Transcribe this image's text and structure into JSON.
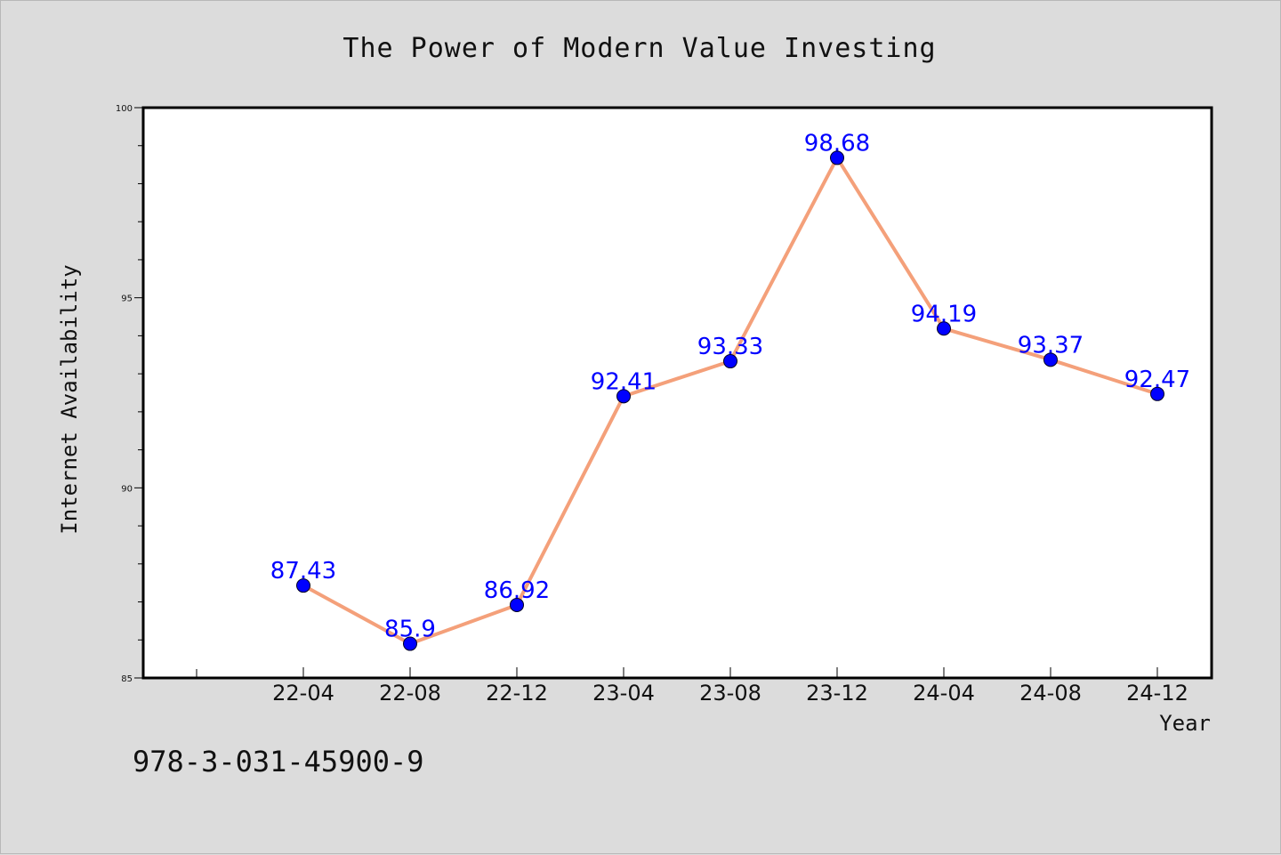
{
  "chart_data": {
    "type": "line",
    "title": "The Power of Modern Value Investing",
    "xlabel": "Year",
    "ylabel": "Internet Availability",
    "categories": [
      "22-04",
      "22-08",
      "22-12",
      "23-04",
      "23-08",
      "23-12",
      "24-04",
      "24-08",
      "24-12"
    ],
    "values": [
      87.43,
      85.9,
      86.92,
      92.41,
      93.33,
      98.68,
      94.19,
      93.37,
      92.47
    ],
    "data_labels": [
      "87.43",
      "85.9",
      "86.92",
      "92.41",
      "93.33",
      "98.68",
      "94.19",
      "93.37",
      "92.47"
    ],
    "ylim": [
      85,
      100
    ],
    "yticks": [
      85,
      90,
      95,
      100
    ],
    "ytick_labels": [
      "85",
      "90",
      "95",
      "100"
    ],
    "grid": false,
    "line_color": "#f4a07a",
    "marker_color": "#0000ff",
    "label_color": "#0000ff"
  },
  "footer_text": "978-3-031-45900-9"
}
